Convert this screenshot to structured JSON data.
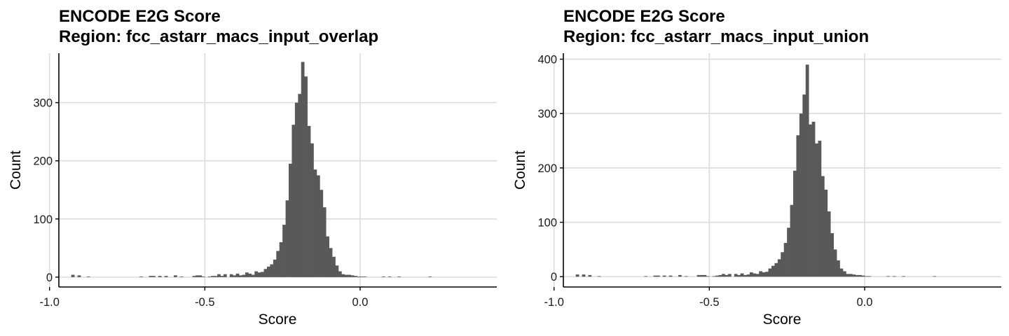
{
  "chart_data": [
    {
      "type": "bar",
      "title": "ENCODE E2G Score",
      "subtitle": "Region: fcc_astarr_macs_input_overlap",
      "xlabel": "Score",
      "ylabel": "Count",
      "xlim": [
        -0.97,
        0.44
      ],
      "ylim": [
        -17,
        385
      ],
      "xticks": [
        -1.0,
        -0.5,
        0.0
      ],
      "xtick_labels": [
        "-1.0",
        "-0.5",
        "0.0"
      ],
      "yticks": [
        0,
        100,
        200,
        300
      ],
      "ytick_labels": [
        "0",
        "100",
        "200",
        "300"
      ],
      "grid": true,
      "legend": "none",
      "bar_color": "#595959",
      "bins": {
        "start": -0.95,
        "width": 0.01,
        "counts": [
          0,
          0,
          4,
          0,
          3,
          0,
          0,
          1,
          0,
          0,
          0,
          0,
          0,
          0,
          0,
          0,
          0,
          0,
          0,
          0,
          0,
          0,
          0,
          0,
          1,
          0,
          0,
          2,
          2,
          0,
          2,
          0,
          2,
          0,
          0,
          3,
          0,
          1,
          0,
          0,
          0,
          2,
          3,
          3,
          1,
          0,
          1,
          2,
          2,
          5,
          2,
          5,
          0,
          5,
          3,
          6,
          3,
          4,
          8,
          6,
          4,
          10,
          8,
          9,
          14,
          18,
          22,
          30,
          45,
          60,
          90,
          132,
          195,
          262,
          300,
          315,
          370,
          345,
          260,
          230,
          185,
          175,
          150,
          120,
          70,
          50,
          35,
          20,
          10,
          5,
          4,
          4,
          3,
          2,
          1,
          1,
          1,
          0,
          0,
          0,
          0,
          0,
          1,
          0,
          1,
          0,
          0,
          1,
          0,
          0,
          0,
          0,
          0,
          0,
          0,
          0,
          0,
          1,
          0,
          0
        ]
      }
    },
    {
      "type": "bar",
      "title": "ENCODE E2G Score",
      "subtitle": "Region: fcc_astarr_macs_input_union",
      "xlabel": "Score",
      "ylabel": "Count",
      "xlim": [
        -0.97,
        0.44
      ],
      "ylim": [
        -19,
        411
      ],
      "xticks": [
        -1.0,
        -0.5,
        0.0
      ],
      "xtick_labels": [
        "-1.0",
        "-0.5",
        "0.0"
      ],
      "yticks": [
        0,
        100,
        200,
        300,
        400
      ],
      "ytick_labels": [
        "0",
        "100",
        "200",
        "300",
        "400"
      ],
      "grid": true,
      "legend": "none",
      "bar_color": "#595959",
      "bins": {
        "start": -0.95,
        "width": 0.01,
        "counts": [
          0,
          0,
          4,
          0,
          4,
          0,
          3,
          0,
          0,
          1,
          0,
          0,
          0,
          0,
          0,
          0,
          0,
          0,
          0,
          0,
          0,
          0,
          0,
          0,
          1,
          0,
          0,
          2,
          2,
          0,
          2,
          0,
          2,
          0,
          0,
          3,
          0,
          1,
          0,
          0,
          0,
          3,
          3,
          3,
          1,
          0,
          1,
          2,
          3,
          5,
          3,
          5,
          0,
          5,
          3,
          6,
          3,
          4,
          8,
          6,
          5,
          10,
          8,
          9,
          15,
          20,
          25,
          32,
          45,
          62,
          90,
          132,
          195,
          260,
          300,
          335,
          390,
          280,
          285,
          245,
          250,
          185,
          160,
          120,
          80,
          50,
          30,
          15,
          10,
          5,
          5,
          4,
          3,
          3,
          2,
          1,
          1,
          0,
          0,
          0,
          0,
          0,
          1,
          0,
          1,
          0,
          0,
          1,
          0,
          0,
          0,
          0,
          0,
          0,
          0,
          0,
          0,
          1,
          0,
          0
        ]
      }
    }
  ]
}
